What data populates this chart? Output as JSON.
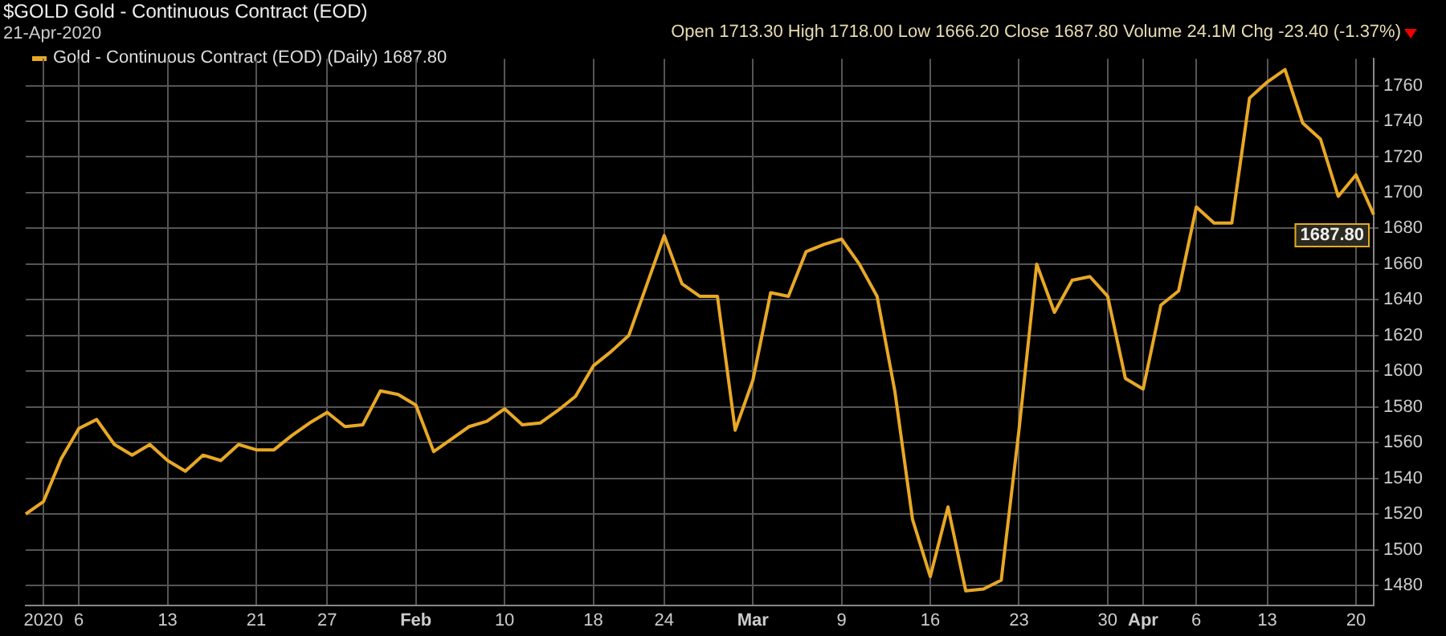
{
  "chart_data": {
    "type": "line",
    "title": "$GOLD Gold - Continuous Contract (EOD)",
    "subtitle": "21-Apr-2020",
    "annotations": [
      "Open 1713.30 High 1718.00 Low 1666.20 Close 1687.80 Volume 24.1M Chg -23.40 (-1.37%)"
    ],
    "categories": [
      null,
      "2020",
      null,
      "6",
      null,
      null,
      null,
      null,
      "13",
      null,
      null,
      null,
      null,
      "21",
      null,
      null,
      null,
      "27",
      null,
      null,
      null,
      null,
      "Feb",
      null,
      null,
      null,
      null,
      "10",
      null,
      null,
      null,
      null,
      "18",
      null,
      null,
      null,
      "24",
      null,
      null,
      null,
      null,
      "Mar",
      null,
      null,
      null,
      null,
      "9",
      null,
      null,
      null,
      null,
      "16",
      null,
      null,
      null,
      null,
      "23",
      null,
      null,
      null,
      null,
      "30",
      null,
      "Apr",
      null,
      null,
      "6",
      null,
      null,
      null,
      "13",
      null,
      null,
      null,
      null,
      "20",
      null
    ],
    "series": [
      {
        "name": "Gold - Continuous Contract (EOD) (Daily) 1687.80",
        "color": "#e8a825",
        "values": [
          1520,
          1527,
          1551,
          1568,
          1573,
          1559,
          1553,
          1559,
          1550,
          1544,
          1553,
          1550,
          1559,
          1556,
          1556,
          1564,
          1571,
          1577,
          1569,
          1570,
          1589,
          1587,
          1581,
          1555,
          1562,
          1569,
          1572,
          1579,
          1570,
          1571,
          1578,
          1586,
          1603,
          1611,
          1620,
          1648,
          1676,
          1649,
          1642,
          1642,
          1567,
          1595,
          1644,
          1642,
          1667,
          1671,
          1674,
          1660,
          1642,
          1589,
          1517,
          1485,
          1524,
          1477,
          1478,
          1483,
          1567,
          1660,
          1633,
          1651,
          1653,
          1642,
          1596,
          1590,
          1637,
          1645,
          1692,
          1683,
          1683,
          1753,
          1762,
          1769,
          1739,
          1730,
          1698,
          1710,
          1687.8
        ],
        "value_labels": [
          null,
          null,
          null,
          null,
          null,
          null,
          null,
          null,
          null,
          null,
          null,
          null,
          null,
          null,
          null,
          null,
          null,
          null,
          null,
          null,
          null,
          null,
          null,
          null,
          null,
          null,
          null,
          null,
          null,
          null,
          null,
          null,
          null,
          null,
          null,
          null,
          null,
          null,
          null,
          null,
          null,
          null,
          null,
          null,
          null,
          null,
          null,
          null,
          null,
          null,
          null,
          null,
          null,
          null,
          null,
          null,
          null,
          null,
          null,
          null,
          null,
          null,
          null,
          null,
          null,
          null,
          null,
          null,
          null,
          null,
          null,
          null,
          null,
          null,
          null,
          null,
          "1687.80"
        ]
      }
    ],
    "ylim": [
      1469,
      1775
    ],
    "yticks": [
      1480,
      1500,
      1520,
      1540,
      1560,
      1580,
      1600,
      1620,
      1640,
      1660,
      1680,
      1700,
      1720,
      1740,
      1760
    ],
    "grid": true,
    "legend": "top left"
  }
}
